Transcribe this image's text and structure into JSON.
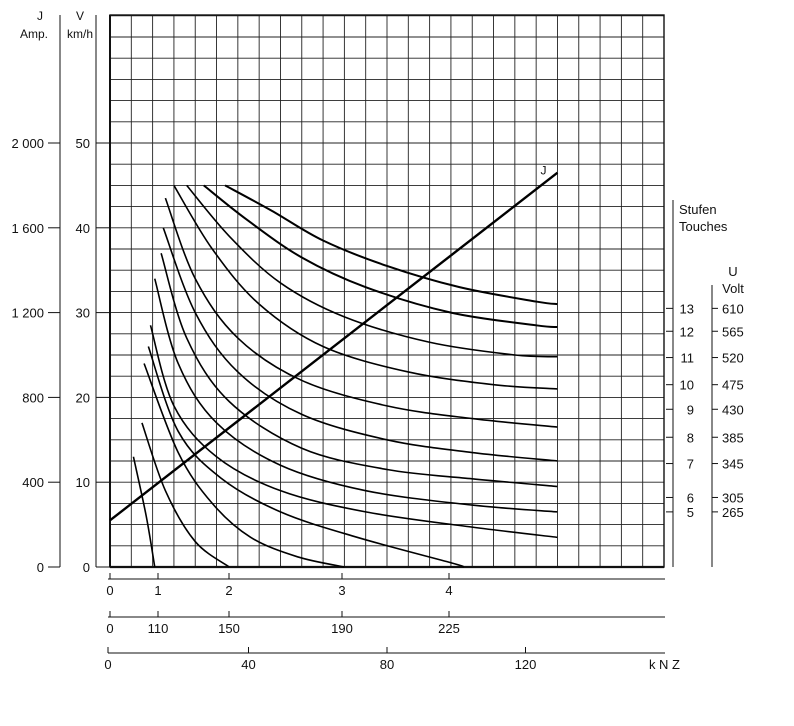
{
  "chart_data": {
    "type": "line",
    "left_axes": {
      "j": {
        "title_top": "J",
        "title_bottom": "Amp.",
        "ticks": [
          {
            "label": "0",
            "value": 0
          },
          {
            "label": "400",
            "value": 400
          },
          {
            "label": "800",
            "value": 800
          },
          {
            "label": "1 200",
            "value": 1200
          },
          {
            "label": "1 600",
            "value": 1600
          },
          {
            "label": "2 000",
            "value": 2000
          }
        ]
      },
      "v": {
        "title_top": "V",
        "title_bottom": "km/h",
        "ticks": [
          {
            "label": "0",
            "value": 0
          },
          {
            "label": "10",
            "value": 10
          },
          {
            "label": "20",
            "value": 20
          },
          {
            "label": "30",
            "value": 30
          },
          {
            "label": "40",
            "value": 40
          },
          {
            "label": "50",
            "value": 50
          }
        ]
      }
    },
    "bottom_axes": [
      {
        "ticks": [
          {
            "label": "0",
            "pos": 0
          },
          {
            "label": "1",
            "pos": 1
          },
          {
            "label": "2",
            "pos": 2
          },
          {
            "label": "3",
            "pos": 3
          },
          {
            "label": "4",
            "pos": 4
          }
        ]
      },
      {
        "ticks": [
          {
            "label": "0",
            "pos": 0
          },
          {
            "label": "110",
            "pos": 1
          },
          {
            "label": "150",
            "pos": 2
          },
          {
            "label": "190",
            "pos": 3
          },
          {
            "label": "225",
            "pos": 4
          }
        ]
      },
      {
        "unit": "k N  Z",
        "ticks": [
          {
            "label": "0",
            "value": 0
          },
          {
            "label": "40",
            "value": 40
          },
          {
            "label": "80",
            "value": 80
          },
          {
            "label": "120",
            "value": 120
          }
        ]
      }
    ],
    "right_axes": {
      "stufen_title": [
        "Stufen",
        "Touches"
      ],
      "volt_title": [
        "U",
        "Volt"
      ],
      "steps": [
        {
          "stufe": "5",
          "volt": "265",
          "v": 6.5
        },
        {
          "stufe": "6",
          "volt": "305",
          "v": 8.2
        },
        {
          "stufe": "7",
          "volt": "345",
          "v": 12.2
        },
        {
          "stufe": "8",
          "volt": "385",
          "v": 15.3
        },
        {
          "stufe": "9",
          "volt": "430",
          "v": 18.6
        },
        {
          "stufe": "10",
          "volt": "475",
          "v": 21.5
        },
        {
          "stufe": "11",
          "volt": "520",
          "v": 24.7
        },
        {
          "stufe": "12",
          "volt": "565",
          "v": 27.8
        },
        {
          "stufe": "13",
          "volt": "610",
          "v": 30.5
        }
      ]
    },
    "current_line": {
      "label": "J",
      "points": [
        {
          "z": 0,
          "j": 220
        },
        {
          "z": 105,
          "j": 1860
        }
      ]
    },
    "speed_curves": [
      {
        "points": [
          [
            5.5,
            13
          ],
          [
            8.5,
            6
          ],
          [
            10.5,
            0
          ]
        ]
      },
      {
        "points": [
          [
            7.5,
            17
          ],
          [
            13,
            9
          ],
          [
            20,
            3
          ],
          [
            28,
            0
          ]
        ]
      },
      {
        "points": [
          [
            8,
            24
          ],
          [
            16,
            13.5
          ],
          [
            24,
            7.5
          ],
          [
            33,
            3.5
          ],
          [
            44,
            1.2
          ],
          [
            55,
            0
          ]
        ]
      },
      {
        "points": [
          [
            9,
            26
          ],
          [
            16,
            16
          ],
          [
            26,
            10.5
          ],
          [
            40,
            6.5
          ],
          [
            58,
            3.5
          ],
          [
            80,
            0.5
          ],
          [
            83,
            0
          ]
        ]
      },
      {
        "points": [
          [
            9.5,
            28.5
          ],
          [
            15,
            19
          ],
          [
            25,
            13
          ],
          [
            40,
            9
          ],
          [
            60,
            6.5
          ],
          [
            85,
            4.7
          ],
          [
            105,
            3.5
          ]
        ]
      },
      {
        "points": [
          [
            10.5,
            34
          ],
          [
            16,
            24
          ],
          [
            25,
            17
          ],
          [
            40,
            12
          ],
          [
            60,
            9
          ],
          [
            85,
            7.3
          ],
          [
            105,
            6.5
          ]
        ]
      },
      {
        "points": [
          [
            12,
            37
          ],
          [
            18,
            27
          ],
          [
            28,
            19.5
          ],
          [
            45,
            14
          ],
          [
            65,
            11.5
          ],
          [
            85,
            10.4
          ],
          [
            105,
            9.5
          ]
        ]
      },
      {
        "points": [
          [
            12.5,
            40
          ],
          [
            20,
            30
          ],
          [
            30,
            23
          ],
          [
            45,
            18
          ],
          [
            65,
            15
          ],
          [
            85,
            13.5
          ],
          [
            105,
            12.5
          ]
        ]
      },
      {
        "points": [
          [
            13,
            43.5
          ],
          [
            20,
            34
          ],
          [
            30,
            27
          ],
          [
            45,
            22
          ],
          [
            65,
            19
          ],
          [
            85,
            17.5
          ],
          [
            105,
            16.5
          ]
        ]
      },
      {
        "points": [
          [
            15,
            45
          ],
          [
            24,
            37.5
          ],
          [
            35,
            31
          ],
          [
            50,
            26
          ],
          [
            70,
            23
          ],
          [
            90,
            21.5
          ],
          [
            105,
            21
          ]
        ]
      },
      {
        "points": [
          [
            18,
            45
          ],
          [
            28,
            39
          ],
          [
            40,
            33.5
          ],
          [
            55,
            29.5
          ],
          [
            75,
            26.5
          ],
          [
            95,
            25
          ],
          [
            105,
            24.8
          ]
        ]
      },
      {
        "points": [
          [
            22,
            45
          ],
          [
            32,
            41
          ],
          [
            45,
            36.5
          ],
          [
            60,
            33
          ],
          [
            80,
            30
          ],
          [
            100,
            28.5
          ],
          [
            105,
            28.3
          ]
        ]
      },
      {
        "points": [
          [
            27,
            45
          ],
          [
            38,
            42
          ],
          [
            50,
            38.5
          ],
          [
            65,
            35.5
          ],
          [
            82,
            33
          ],
          [
            100,
            31.3
          ],
          [
            105,
            31
          ]
        ]
      }
    ]
  }
}
